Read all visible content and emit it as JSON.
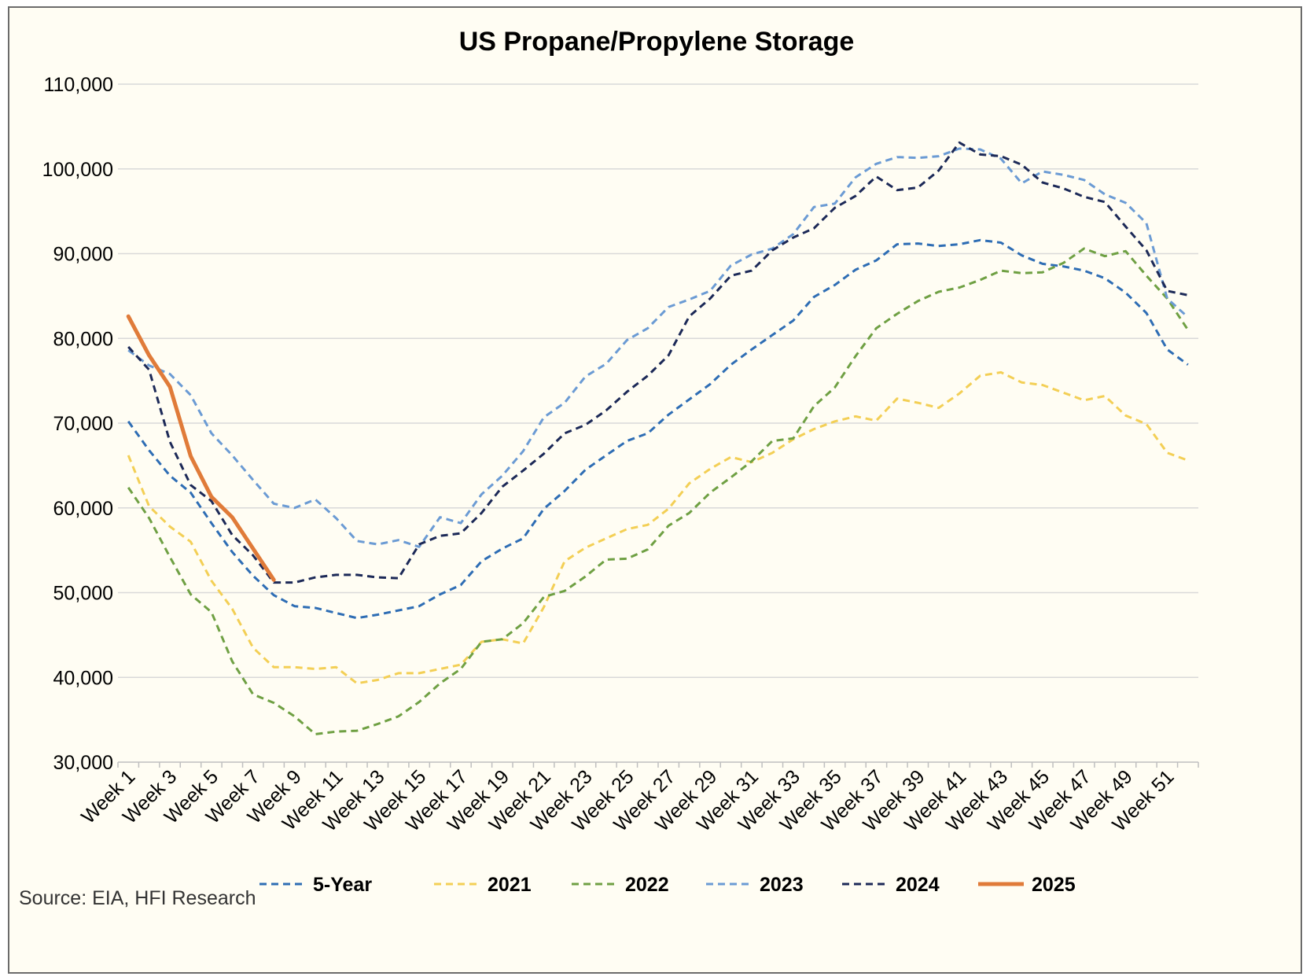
{
  "chart_data": {
    "type": "line",
    "title": "US Propane/Propylene Storage",
    "xlabel": "",
    "ylabel": "",
    "ylim": [
      30000,
      110000
    ],
    "y_ticks": [
      30000,
      40000,
      50000,
      60000,
      70000,
      80000,
      90000,
      100000,
      110000
    ],
    "y_tick_labels": [
      "30,000",
      "40,000",
      "50,000",
      "60,000",
      "70,000",
      "80,000",
      "90,000",
      "100,000",
      "110,000"
    ],
    "x_tick_labels": [
      "Week 1",
      "Week 3",
      "Week 5",
      "Week 7",
      "Week 9",
      "Week 11",
      "Week 13",
      "Week 15",
      "Week 17",
      "Week 19",
      "Week 21",
      "Week 23",
      "Week 25",
      "Week 27",
      "Week 29",
      "Week 31",
      "Week 33",
      "Week 35",
      "Week 37",
      "Week 39",
      "Week 41",
      "Week 43",
      "Week 45",
      "Week 47",
      "Week 49",
      "Week 51"
    ],
    "grid": true,
    "legend_position": "bottom",
    "source": "Source: EIA, HFI Research",
    "series": [
      {
        "name": "5-Year",
        "color": "#2e6db4",
        "style": "dashed",
        "values": [
          70200,
          66800,
          63800,
          61800,
          58200,
          54800,
          52000,
          49700,
          48400,
          48200,
          47600,
          47000,
          47400,
          47900,
          48400,
          49800,
          50900,
          53700,
          55200,
          56400,
          59900,
          62000,
          64500,
          66200,
          67900,
          68800,
          71000,
          72800,
          74600,
          76900,
          78700,
          80400,
          82100,
          84900,
          86300,
          88100,
          89200,
          91100,
          91200,
          90900,
          91100,
          91600,
          91300,
          89800,
          88800,
          88500,
          88000,
          87100,
          85400,
          83000,
          78700,
          76900
        ]
      },
      {
        "name": "2021",
        "color": "#f3cf55",
        "style": "dashed",
        "values": [
          66200,
          60200,
          57800,
          56000,
          51400,
          48100,
          43500,
          41200,
          41200,
          41000,
          41200,
          39300,
          39700,
          40500,
          40500,
          41000,
          41500,
          44200,
          44500,
          44000,
          48300,
          53700,
          55300,
          56400,
          57500,
          58000,
          59900,
          62900,
          64600,
          66000,
          65400,
          66500,
          68100,
          69300,
          70200,
          70800,
          70300,
          72900,
          72400,
          71800,
          73500,
          75600,
          76000,
          74800,
          74500,
          73600,
          72700,
          73200,
          70900,
          69900,
          66500,
          65600
        ]
      },
      {
        "name": "2022",
        "color": "#6fa043",
        "style": "dashed",
        "values": [
          62400,
          58800,
          54200,
          49800,
          47700,
          41900,
          38000,
          37000,
          35400,
          33300,
          33600,
          33700,
          34500,
          35400,
          37100,
          39300,
          41000,
          44200,
          44500,
          46400,
          49500,
          50200,
          51900,
          53900,
          54000,
          55100,
          57900,
          59400,
          61800,
          63600,
          65500,
          67900,
          68200,
          72000,
          74200,
          77900,
          81200,
          82900,
          84400,
          85500,
          86000,
          86900,
          88000,
          87700,
          87800,
          88900,
          90600,
          89700,
          90300,
          87400,
          84700,
          81000
        ]
      },
      {
        "name": "2023",
        "color": "#6b9bd4",
        "style": "dashed",
        "values": [
          78600,
          76800,
          75800,
          73300,
          68800,
          66200,
          63300,
          60500,
          60000,
          61000,
          58800,
          56100,
          55700,
          56200,
          55400,
          58900,
          58200,
          61600,
          63800,
          66700,
          70700,
          72400,
          75500,
          77000,
          79800,
          81200,
          83700,
          84600,
          85600,
          88600,
          89900,
          90600,
          92300,
          95500,
          95900,
          99000,
          100600,
          101400,
          101300,
          101500,
          102400,
          102300,
          101200,
          98300,
          99700,
          99300,
          98700,
          97000,
          96000,
          93600,
          84700,
          82500
        ]
      },
      {
        "name": "2024",
        "color": "#1c2957",
        "style": "dashed",
        "values": [
          79000,
          76300,
          67800,
          62700,
          60800,
          56800,
          54400,
          51200,
          51200,
          51800,
          52100,
          52100,
          51800,
          51700,
          55700,
          56700,
          57000,
          59400,
          62500,
          64400,
          66400,
          68800,
          69800,
          71500,
          73700,
          75600,
          78000,
          82600,
          84700,
          87400,
          88000,
          90400,
          91900,
          93000,
          95400,
          96800,
          99100,
          97500,
          97800,
          99800,
          103100,
          101700,
          101500,
          100500,
          98400,
          97700,
          96700,
          96100,
          93200,
          90400,
          85600,
          85100
        ]
      },
      {
        "name": "2025",
        "color": "#e07b39",
        "style": "solid",
        "values": [
          82600,
          78000,
          74300,
          66100,
          61300,
          58900,
          55200,
          51500
        ]
      }
    ]
  }
}
